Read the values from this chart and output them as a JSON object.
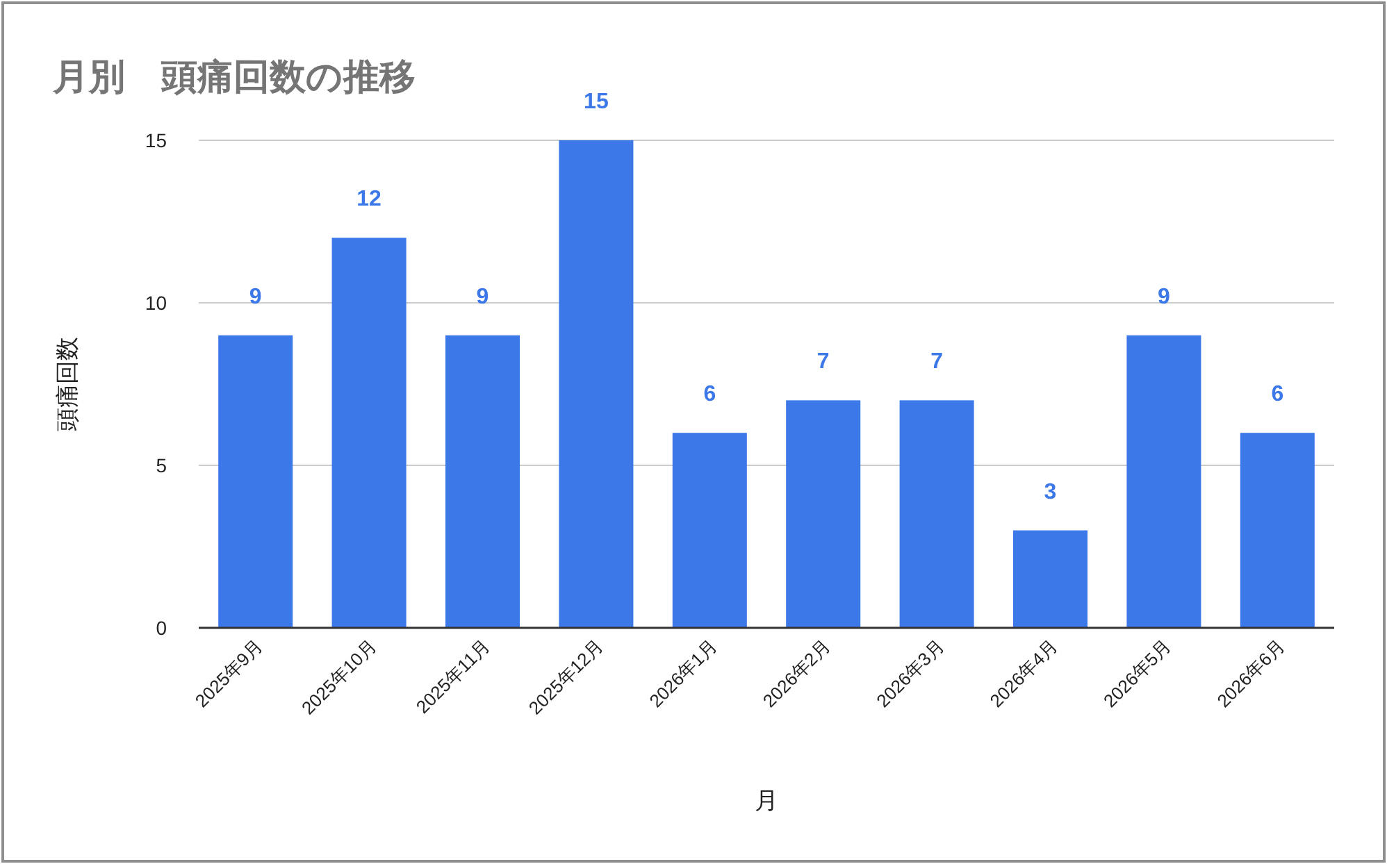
{
  "chart_data": {
    "type": "bar",
    "title": "月別　頭痛回数の推移",
    "xlabel": "月",
    "ylabel": "頭痛回数",
    "categories": [
      "2025年9月",
      "2025年10月",
      "2025年11月",
      "2025年12月",
      "2026年1月",
      "2026年2月",
      "2026年3月",
      "2026年4月",
      "2026年5月",
      "2026年6月"
    ],
    "values": [
      9,
      12,
      9,
      15,
      6,
      7,
      7,
      3,
      9,
      6
    ],
    "color": "#3c78e8",
    "ylim": [
      0,
      15
    ],
    "yticks": [
      0,
      5,
      10,
      15
    ],
    "grid": "y",
    "data_labels": true
  }
}
